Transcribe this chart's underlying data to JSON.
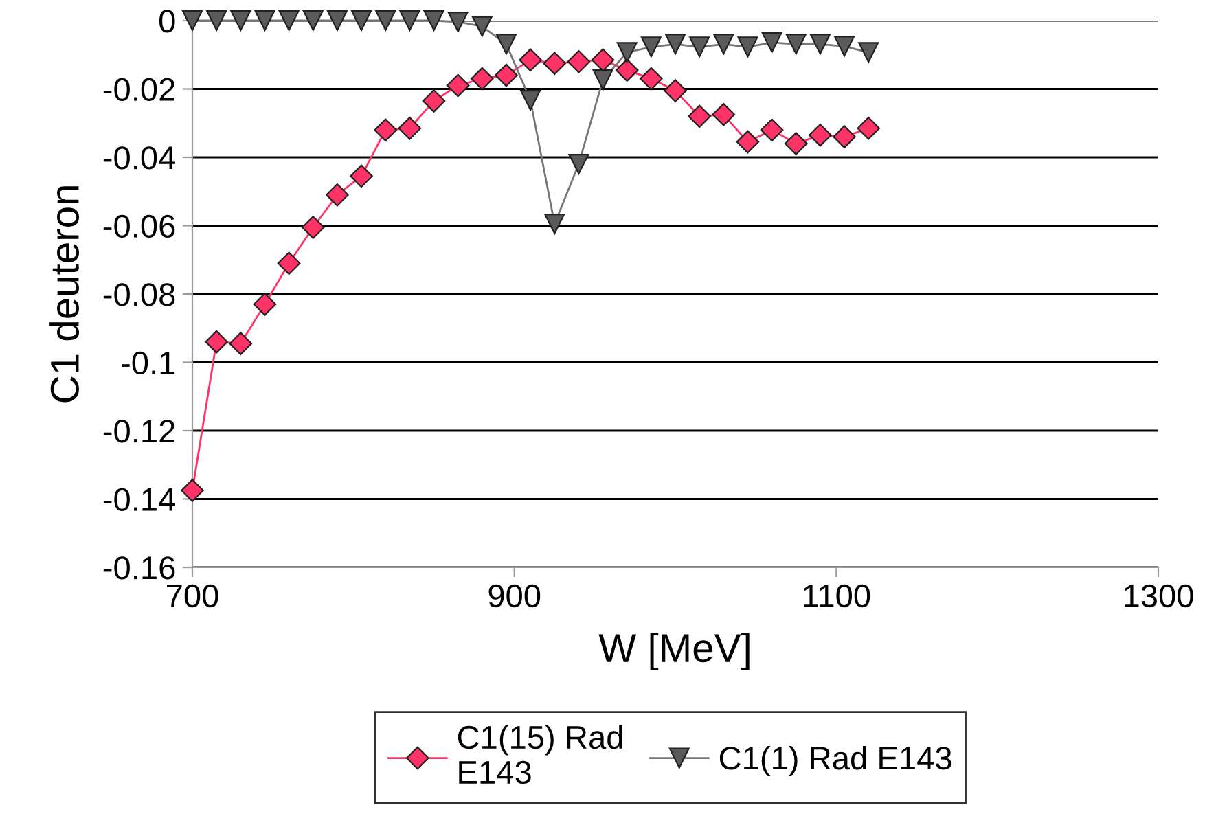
{
  "chart_data": {
    "type": "line",
    "xlabel": "W [MeV]",
    "ylabel": "C1 deuteron",
    "x": [
      700,
      715,
      730,
      745,
      760,
      775,
      790,
      805,
      820,
      835,
      850,
      865,
      880,
      895,
      910,
      925,
      940,
      955,
      970,
      985,
      1000,
      1015,
      1030,
      1045,
      1060,
      1075,
      1090,
      1105,
      1120
    ],
    "series": [
      {
        "name": "C1(15) Rad\nE143",
        "color": "#ff3366",
        "marker": "diamond",
        "values": [
          -0.1375,
          -0.094,
          -0.0945,
          -0.083,
          -0.071,
          -0.0605,
          -0.051,
          -0.0455,
          -0.032,
          -0.0315,
          -0.0235,
          -0.019,
          -0.017,
          -0.016,
          -0.0115,
          -0.0125,
          -0.012,
          -0.0115,
          -0.0145,
          -0.017,
          -0.0205,
          -0.028,
          -0.0275,
          -0.0355,
          -0.032,
          -0.036,
          -0.0335,
          -0.034,
          -0.0315
        ]
      },
      {
        "name": "C1(1) Rad E143",
        "color": "#5a5a5a",
        "marker": "triangle",
        "values": [
          0,
          0,
          0,
          0,
          0,
          0,
          0,
          0,
          0,
          0,
          0,
          -0.0004,
          -0.0017,
          -0.0069,
          -0.0233,
          -0.0595,
          -0.042,
          -0.0173,
          -0.0093,
          -0.0077,
          -0.0069,
          -0.0077,
          -0.0069,
          -0.0077,
          -0.0064,
          -0.0069,
          -0.0069,
          -0.0075,
          -0.0093
        ]
      }
    ],
    "xlim": [
      700,
      1300
    ],
    "xticks": [
      700,
      900,
      1100,
      1300
    ],
    "ylim": [
      -0.16,
      0
    ],
    "yticks": [
      -0.16,
      -0.14,
      -0.12,
      -0.1,
      -0.08,
      -0.06,
      -0.04,
      -0.02,
      0
    ],
    "grid": "y",
    "legend": "bottom"
  }
}
